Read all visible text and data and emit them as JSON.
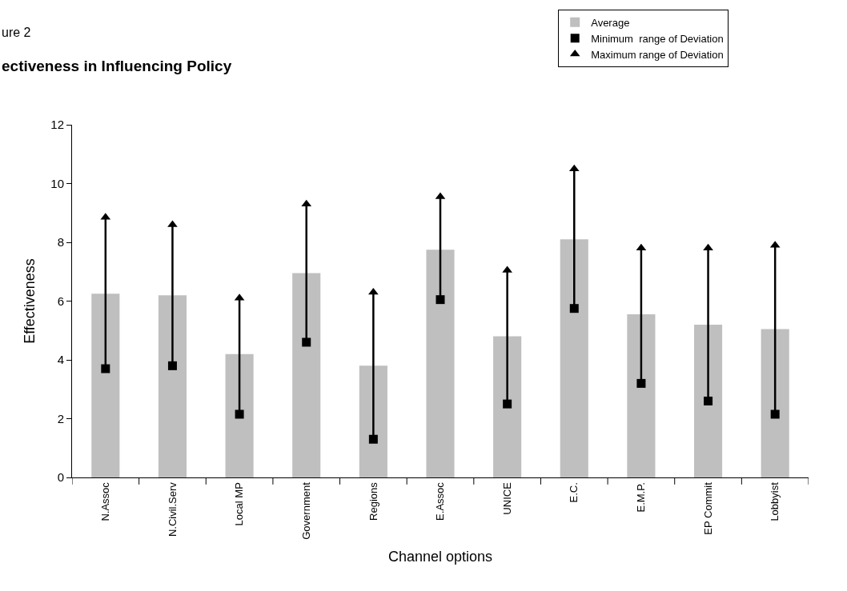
{
  "chart_data": {
    "type": "bar",
    "title": "ectiveness in Influencing Policy",
    "subtitle": "ure 2",
    "xlabel": "Channel options",
    "ylabel": "Effectiveness",
    "categories": [
      "N.Assoc",
      "N.Civil.Serv",
      "Local MP",
      "Government",
      "Regions",
      "E.Assoc",
      "UNICE",
      "E.C.",
      "E.M.P.",
      "EP Commit",
      "Lobbyist"
    ],
    "series": [
      {
        "name": "Average",
        "color": "#bfbfbf",
        "values": [
          6.25,
          6.2,
          4.2,
          6.95,
          3.8,
          7.75,
          4.8,
          8.1,
          5.55,
          5.2,
          5.05
        ]
      },
      {
        "name": "Minimum  range of Deviation",
        "type": "scatter",
        "marker": "square",
        "color": "#000000",
        "values": [
          3.7,
          3.8,
          2.15,
          4.6,
          1.3,
          6.05,
          2.5,
          5.75,
          3.2,
          2.6,
          2.15
        ]
      },
      {
        "name": "Maximum range of Deviation",
        "type": "scatter",
        "marker": "triangle",
        "color": "#000000",
        "values": [
          8.85,
          8.6,
          6.1,
          9.3,
          6.3,
          9.55,
          7.05,
          10.5,
          7.8,
          7.8,
          7.9
        ]
      }
    ],
    "ylim": [
      0,
      12
    ],
    "yticks": [
      0,
      2,
      4,
      6,
      8,
      10,
      12
    ],
    "legend": "top right"
  }
}
